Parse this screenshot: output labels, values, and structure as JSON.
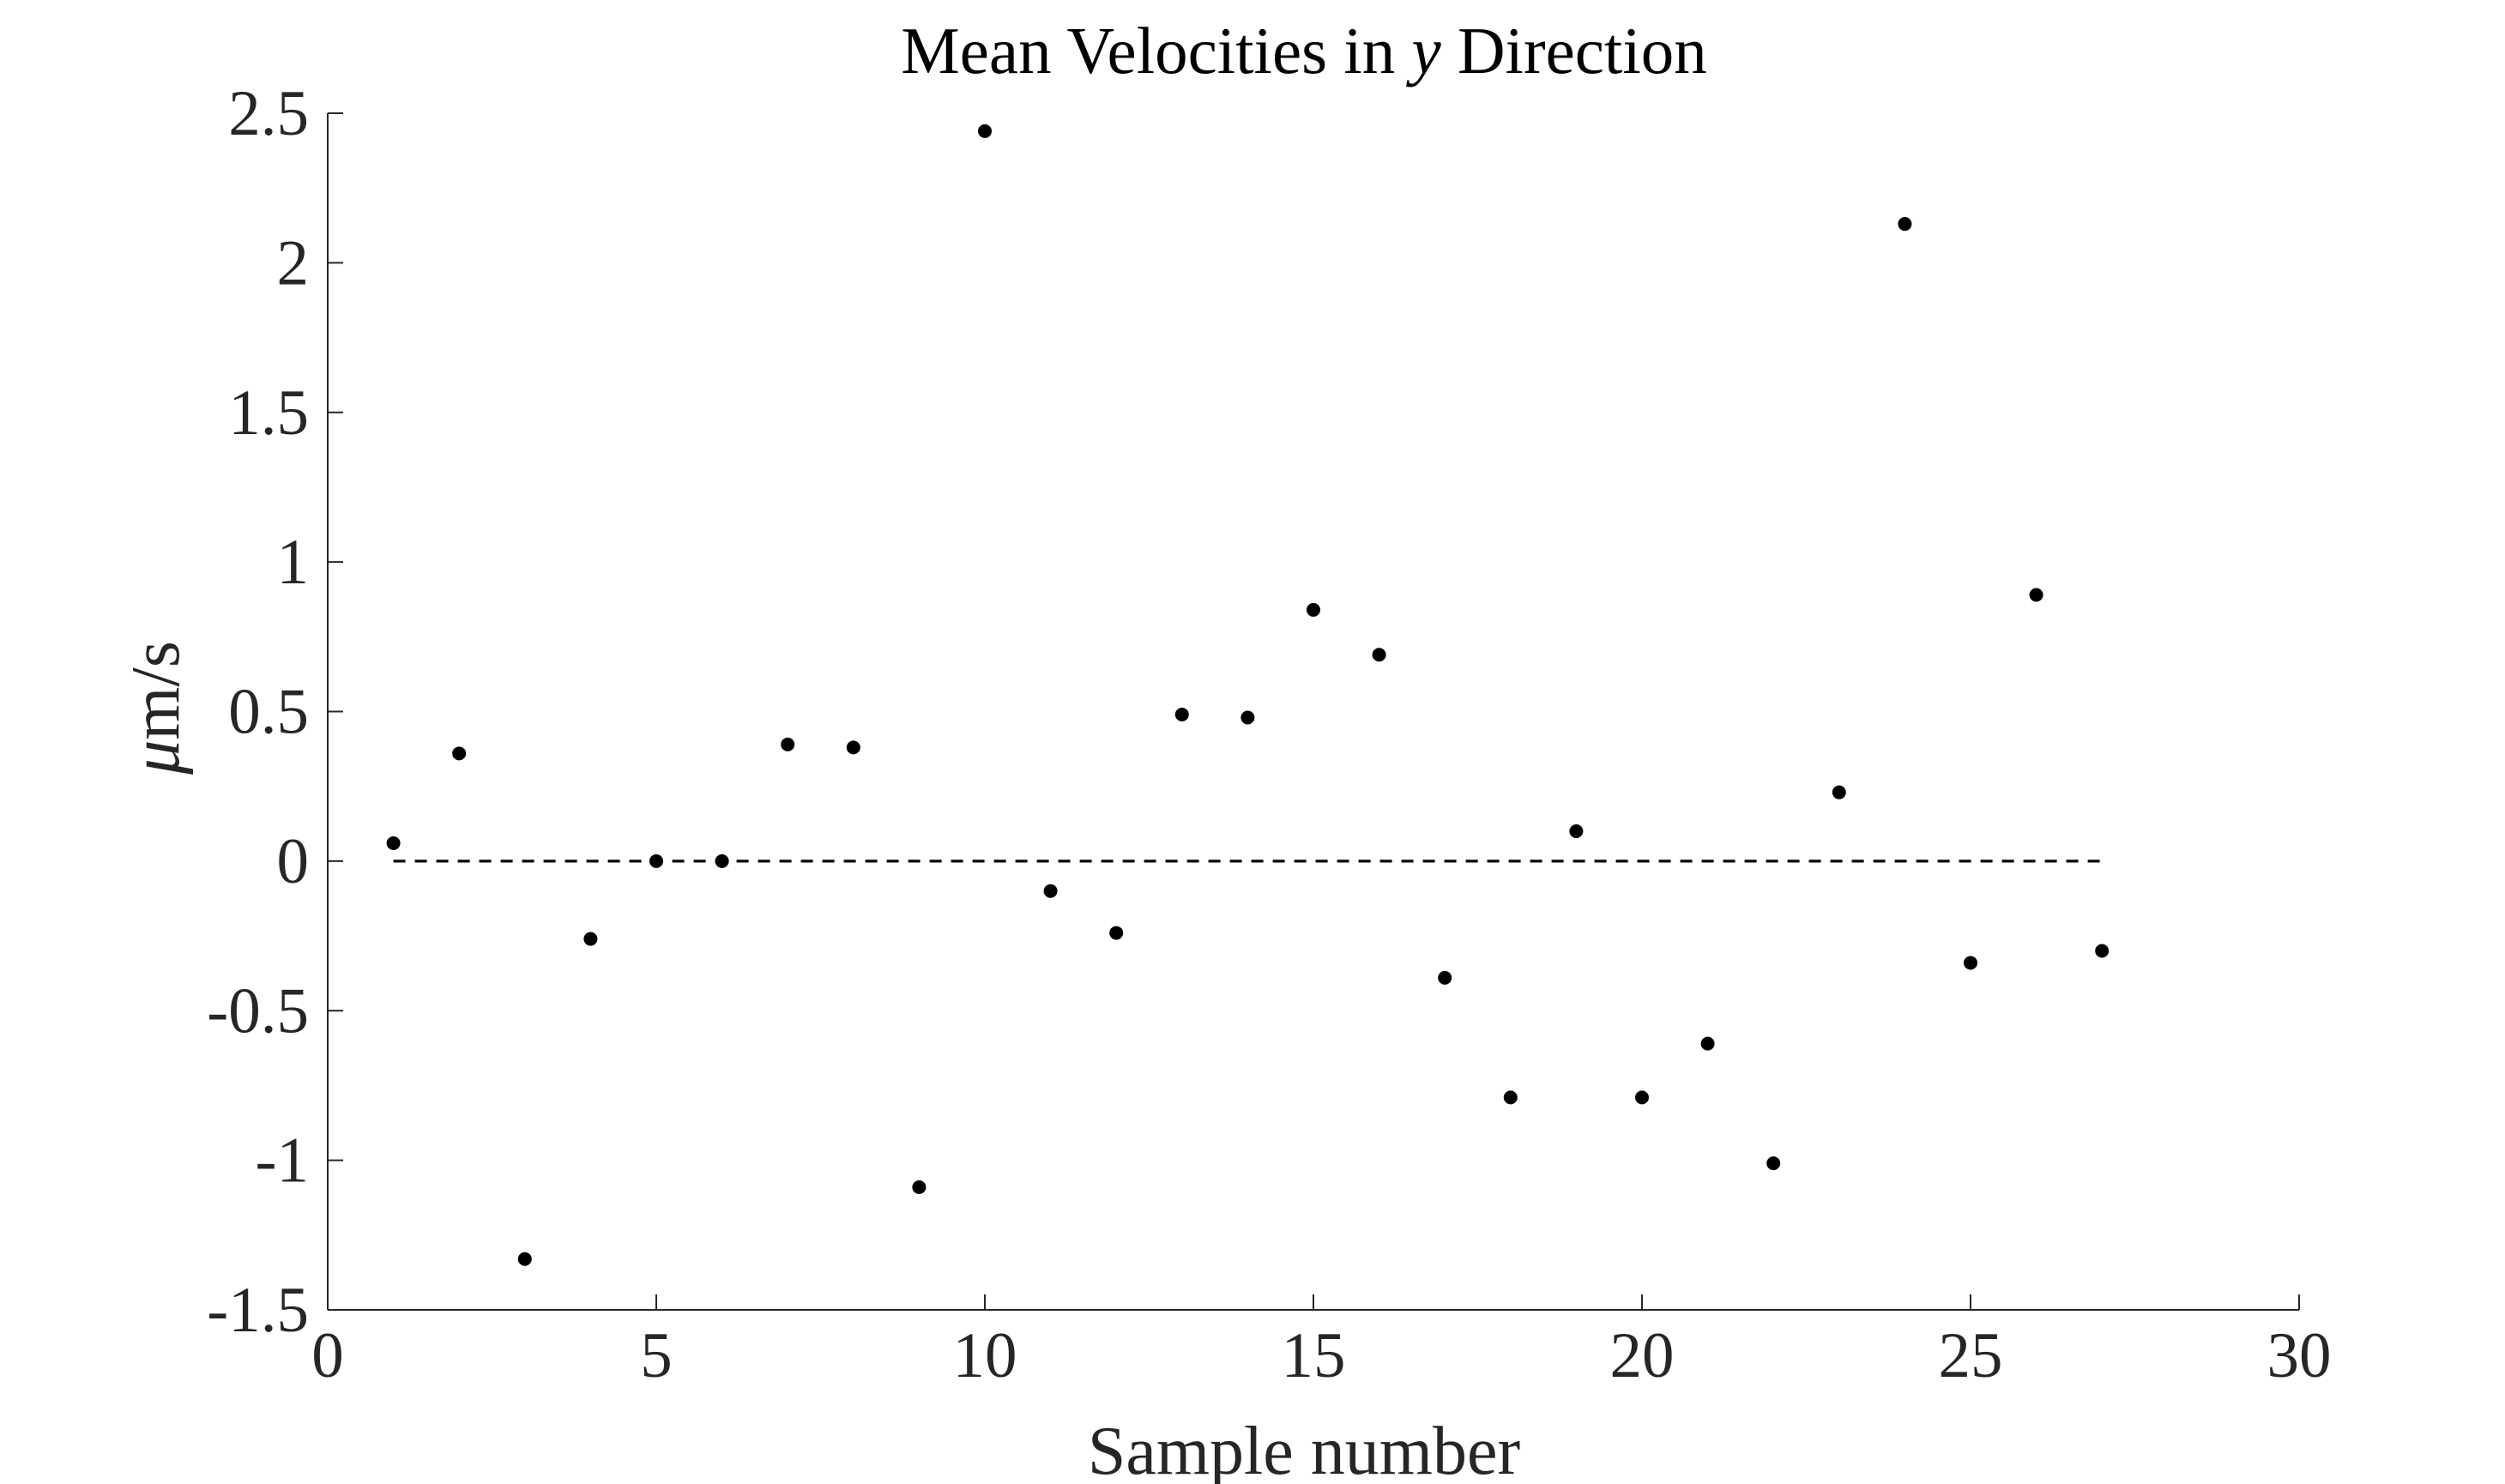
{
  "chart_data": {
    "type": "scatter",
    "title_prefix": "Mean Velocities in ",
    "title_variable": "y",
    "title_suffix": " Direction",
    "xlabel": "Sample number",
    "ylabel_symbol": "μ",
    "ylabel_rest": "m/s",
    "xlim": [
      0,
      30
    ],
    "ylim": [
      -1.5,
      2.5
    ],
    "xticks": [
      0,
      5,
      10,
      15,
      20,
      25,
      30
    ],
    "yticks": [
      -1.5,
      -1,
      -0.5,
      0,
      0.5,
      1,
      1.5,
      2,
      2.5
    ],
    "xtick_labels": [
      "0",
      "5",
      "10",
      "15",
      "20",
      "25",
      "30"
    ],
    "ytick_labels": [
      "-1.5",
      "-1",
      "-0.5",
      "0",
      "0.5",
      "1",
      "1.5",
      "2",
      "2.5"
    ],
    "grid": false,
    "legend": "none",
    "series": [
      {
        "type": "scatter",
        "color": "#000000",
        "x": [
          1,
          2,
          3,
          4,
          5,
          6,
          7,
          8,
          9,
          10,
          11,
          12,
          13,
          14,
          15,
          16,
          17,
          18,
          19,
          20,
          21,
          22,
          23,
          24,
          25,
          26,
          27
        ],
        "y": [
          0.06,
          0.36,
          -1.33,
          -0.26,
          0.0,
          0.0,
          0.39,
          0.38,
          -1.09,
          2.44,
          -0.1,
          -0.24,
          0.49,
          0.48,
          0.84,
          0.69,
          -0.39,
          -0.79,
          0.1,
          -0.79,
          -0.61,
          -1.01,
          0.23,
          2.13,
          -0.34,
          0.89,
          -0.3
        ]
      }
    ],
    "reference_line": {
      "style": "dashed",
      "color": "#000000",
      "x": [
        1,
        27
      ],
      "y": [
        0,
        0
      ]
    },
    "axis_color": "#262626"
  }
}
